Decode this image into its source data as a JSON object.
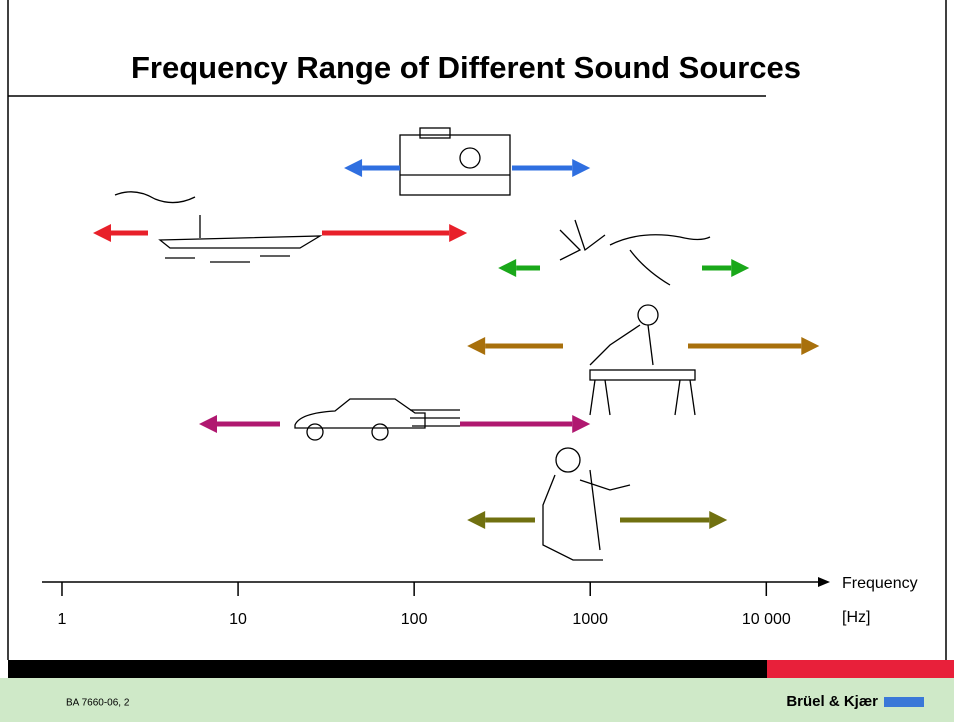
{
  "chart_data": {
    "type": "range",
    "title": "Frequency Range of Different Sound Sources",
    "x_label": "Frequency",
    "x_unit": "[Hz]",
    "xscale": "log",
    "xlim": [
      0.77,
      23000
    ],
    "xticks": [
      1,
      10,
      100,
      1000,
      {
        "value": 10000,
        "label": "10 000"
      }
    ],
    "series": [
      {
        "color": "#2f6fe0",
        "values": [
          40,
          1000
        ]
      },
      {
        "color": "#e8202a",
        "values": [
          1.5,
          200
        ]
      },
      {
        "color": "#1aa81a",
        "values": [
          300,
          8000
        ]
      },
      {
        "color": "#a8700c",
        "values": [
          200,
          20000
        ]
      },
      {
        "color": "#b01870",
        "values": [
          6,
          1000
        ]
      },
      {
        "color": "#707010",
        "values": [
          200,
          6000
        ]
      }
    ]
  },
  "footer": {
    "code": "BA 7660-06, 2",
    "brand": "Brüel & Kjær"
  }
}
